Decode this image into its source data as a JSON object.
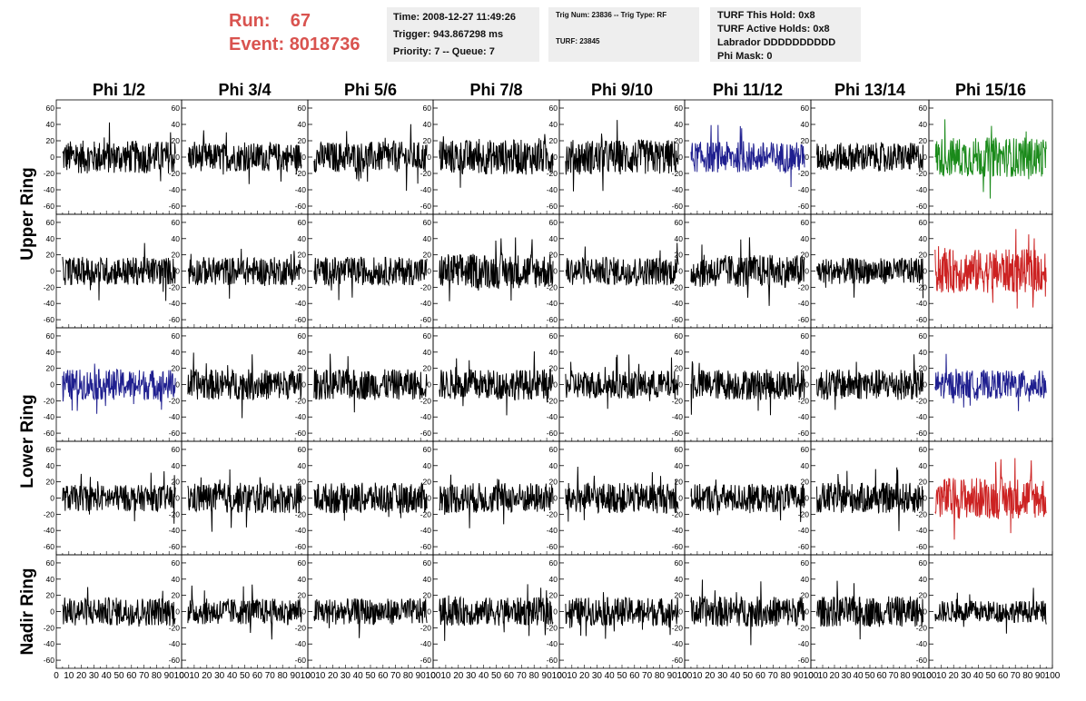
{
  "header": {
    "run_label": "Run:",
    "run_value": "67",
    "event_label": "Event:",
    "event_value": "8018736",
    "time": "Time: 2008-12-27 11:49:26",
    "trigger": "Trigger: 943.867298 ms",
    "priority": "Priority: 7 -- Queue: 7",
    "trig_num": "Trig Num: 23836 -- Trig Type: RF",
    "turf": "TURF: 23845",
    "turf_this_hold": "TURF This Hold: 0x8",
    "turf_active_holds": "TURF Active Holds: 0x8",
    "labrador": "Labrador DDDDDDDDDD",
    "phi_mask": "Phi Mask: 0"
  },
  "chart_data": {
    "type": "line",
    "columns": [
      "Phi 1/2",
      "Phi 3/4",
      "Phi 5/6",
      "Phi 7/8",
      "Phi 9/10",
      "Phi 11/12",
      "Phi 13/14",
      "Phi 15/16"
    ],
    "row_groups": [
      {
        "label": "Upper Ring",
        "rows": 2
      },
      {
        "label": "Lower Ring",
        "rows": 2
      },
      {
        "label": "Nadir Ring",
        "rows": 1
      }
    ],
    "ylim": [
      -70,
      70
    ],
    "y_ticks": [
      -60,
      -40,
      -20,
      0,
      20,
      40,
      60
    ],
    "xlim": [
      0,
      100
    ],
    "x_tick_labels": [
      "0",
      "10",
      "20",
      "30",
      "40",
      "50",
      "60",
      "70",
      "80",
      "90",
      "100"
    ],
    "grid": false,
    "trace_colors": [
      [
        "#000000",
        "#000000",
        "#000000",
        "#000000",
        "#000000",
        "#1f1f8f",
        "#000000",
        "#1a8a1a"
      ],
      [
        "#000000",
        "#000000",
        "#000000",
        "#000000",
        "#000000",
        "#000000",
        "#000000",
        "#cc2222"
      ],
      [
        "#1f1f8f",
        "#000000",
        "#000000",
        "#000000",
        "#000000",
        "#000000",
        "#000000",
        "#1f1f8f"
      ],
      [
        "#000000",
        "#000000",
        "#000000",
        "#000000",
        "#000000",
        "#000000",
        "#000000",
        "#cc2222"
      ],
      [
        "#000000",
        "#000000",
        "#000000",
        "#000000",
        "#000000",
        "#000000",
        "#000000",
        "#000000"
      ]
    ],
    "trace_amplitude": [
      [
        15,
        13,
        14,
        16,
        16,
        14,
        13,
        18
      ],
      [
        13,
        13,
        13,
        16,
        13,
        15,
        12,
        20
      ],
      [
        14,
        14,
        14,
        14,
        13,
        14,
        14,
        13
      ],
      [
        12,
        14,
        14,
        14,
        14,
        13,
        14,
        19
      ],
      [
        13,
        12,
        12,
        13,
        13,
        14,
        14,
        10
      ]
    ]
  }
}
